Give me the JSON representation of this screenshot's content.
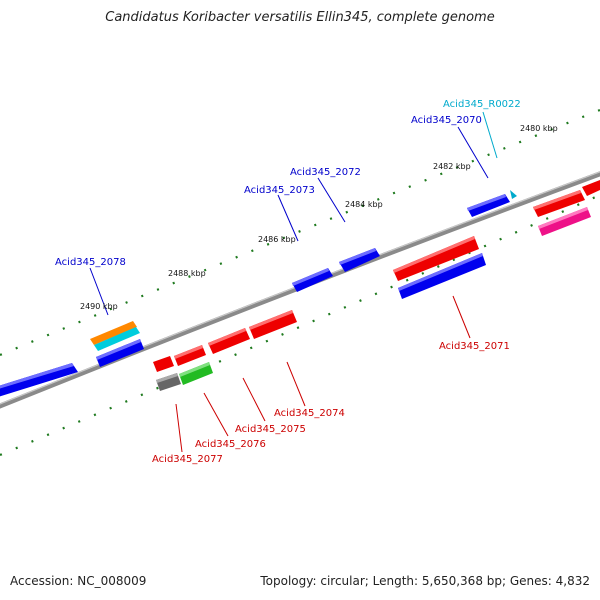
{
  "title": "Candidatus Koribacter versatilis Ellin345, complete genome",
  "footer": {
    "accession": "Accession: NC_008009",
    "stats": "Topology: circular; Length: 5,650,368 bp; Genes: 4,832"
  },
  "colors": {
    "backbone": "#8a8a8a",
    "ticks": "#1f7a1f",
    "forward_label": "#0000cc",
    "reverse_label": "#cc0000",
    "rna_label": "#00aacc",
    "forward_gene": "#0000ee",
    "reverse_gene": "#ee0000",
    "orange": "#ff8800",
    "cyan": "#00ccdd",
    "magenta": "#ee1188",
    "gray": "#666666",
    "green": "#22bb22"
  },
  "kbp_labels": [
    {
      "id": "2480",
      "text": "2480 kbp"
    },
    {
      "id": "2482",
      "text": "2482 kbp"
    },
    {
      "id": "2484",
      "text": "2484 kbp"
    },
    {
      "id": "2486",
      "text": "2486 kbp"
    },
    {
      "id": "2488",
      "text": "2488 kbp"
    },
    {
      "id": "2490",
      "text": "2490 kbp"
    }
  ],
  "gene_labels": [
    {
      "id": "Acid345_R0022",
      "text": "Acid345_R0022",
      "kind": "rna"
    },
    {
      "id": "Acid345_2070",
      "text": "Acid345_2070",
      "kind": "forward"
    },
    {
      "id": "Acid345_2072",
      "text": "Acid345_2072",
      "kind": "forward"
    },
    {
      "id": "Acid345_2073",
      "text": "Acid345_2073",
      "kind": "forward"
    },
    {
      "id": "Acid345_2078",
      "text": "Acid345_2078",
      "kind": "forward"
    },
    {
      "id": "Acid345_2071",
      "text": "Acid345_2071",
      "kind": "reverse"
    },
    {
      "id": "Acid345_2074",
      "text": "Acid345_2074",
      "kind": "reverse"
    },
    {
      "id": "Acid345_2075",
      "text": "Acid345_2075",
      "kind": "reverse"
    },
    {
      "id": "Acid345_2076",
      "text": "Acid345_2076",
      "kind": "reverse"
    },
    {
      "id": "Acid345_2077",
      "text": "Acid345_2077",
      "kind": "reverse"
    }
  ]
}
